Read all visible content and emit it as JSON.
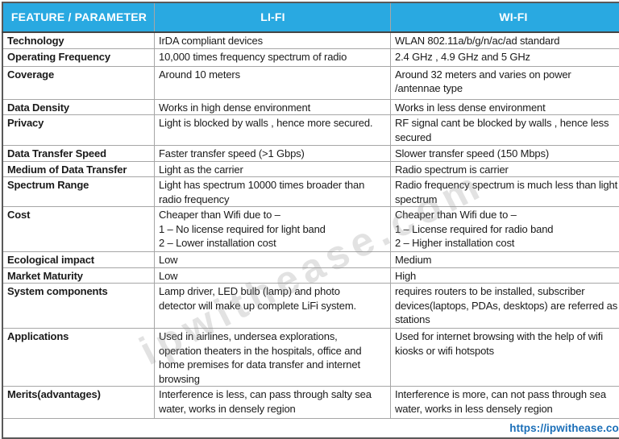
{
  "header": {
    "feature": "FEATURE / PARAMETER",
    "lifi": "LI-FI",
    "wifi": "WI-FI"
  },
  "rows": [
    {
      "feature": "Technology",
      "lifi": "IrDA compliant devices",
      "wifi": "WLAN 802.11a/b/g/n/ac/ad standard"
    },
    {
      "feature": "Operating Frequency",
      "lifi": "10,000 times frequency spectrum of radio",
      "wifi": "2.4 GHz , 4.9 GHz and 5 GHz"
    },
    {
      "feature": "Coverage",
      "lifi": "Around 10 meters",
      "wifi": "Around 32 meters and varies on power\n/antennae type"
    },
    {
      "feature": "Data Density",
      "lifi": "Works in high dense environment",
      "wifi": "Works in less dense environment"
    },
    {
      "feature": "Privacy",
      "lifi": "Light is blocked by walls , hence more secured.",
      "wifi": "RF signal cant be blocked by walls , hence less\nsecured"
    },
    {
      "feature": "Data Transfer Speed",
      "lifi": "Faster transfer speed (>1 Gbps)",
      "wifi": "Slower transfer speed (150 Mbps)"
    },
    {
      "feature": "Medium of Data Transfer",
      "lifi": "Light as the carrier",
      "wifi": "Radio spectrum is carrier"
    },
    {
      "feature": "Spectrum Range",
      "lifi": "Light has spectrum 10000 times broader than\nradio frequency",
      "wifi": "Radio frequency spectrum is much less than light\nspectrum"
    },
    {
      "feature": "Cost",
      "lifi": "Cheaper than Wifi due to –\n1 – No license required for light band\n2 – Lower installation cost",
      "wifi": "Cheaper than Wifi due to –\n1 – License required for radio band\n2 – Higher installation cost"
    },
    {
      "feature": "Ecological impact",
      "lifi": "Low",
      "wifi": "Medium"
    },
    {
      "feature": "Market Maturity",
      "lifi": "Low",
      "wifi": "High"
    },
    {
      "feature": "System components",
      "lifi": "Lamp driver, LED bulb (lamp) and photo\ndetector will make up complete LiFi system.",
      "wifi": "requires routers to be installed, subscriber\ndevices(laptops, PDAs, desktops) are referred as\nstations"
    },
    {
      "feature": "Applications",
      "lifi": "Used in airlines, undersea explorations,\noperation theaters in the hospitals, office and\nhome premises for data transfer and internet\nbrowsing",
      "wifi": "Used for internet browsing with the help of wifi\nkiosks or wifi hotspots"
    },
    {
      "feature": "Merits(advantages)",
      "lifi": "Interference is less, can pass through salty sea\nwater, works in densely region",
      "wifi": "Interference is more, can not pass through sea\nwater, works in less densely region"
    }
  ],
  "footer": {
    "link": "https://ipwithease.com"
  },
  "watermark": {
    "text": "ipwithease.com"
  },
  "colors": {
    "header_bg": "#29a9e1",
    "header_text": "#ffffff",
    "link_blue": "#1b6fb8",
    "border_outer": "#595959",
    "border_inner": "#a6a6a6",
    "body_text": "#1a1a1a"
  }
}
